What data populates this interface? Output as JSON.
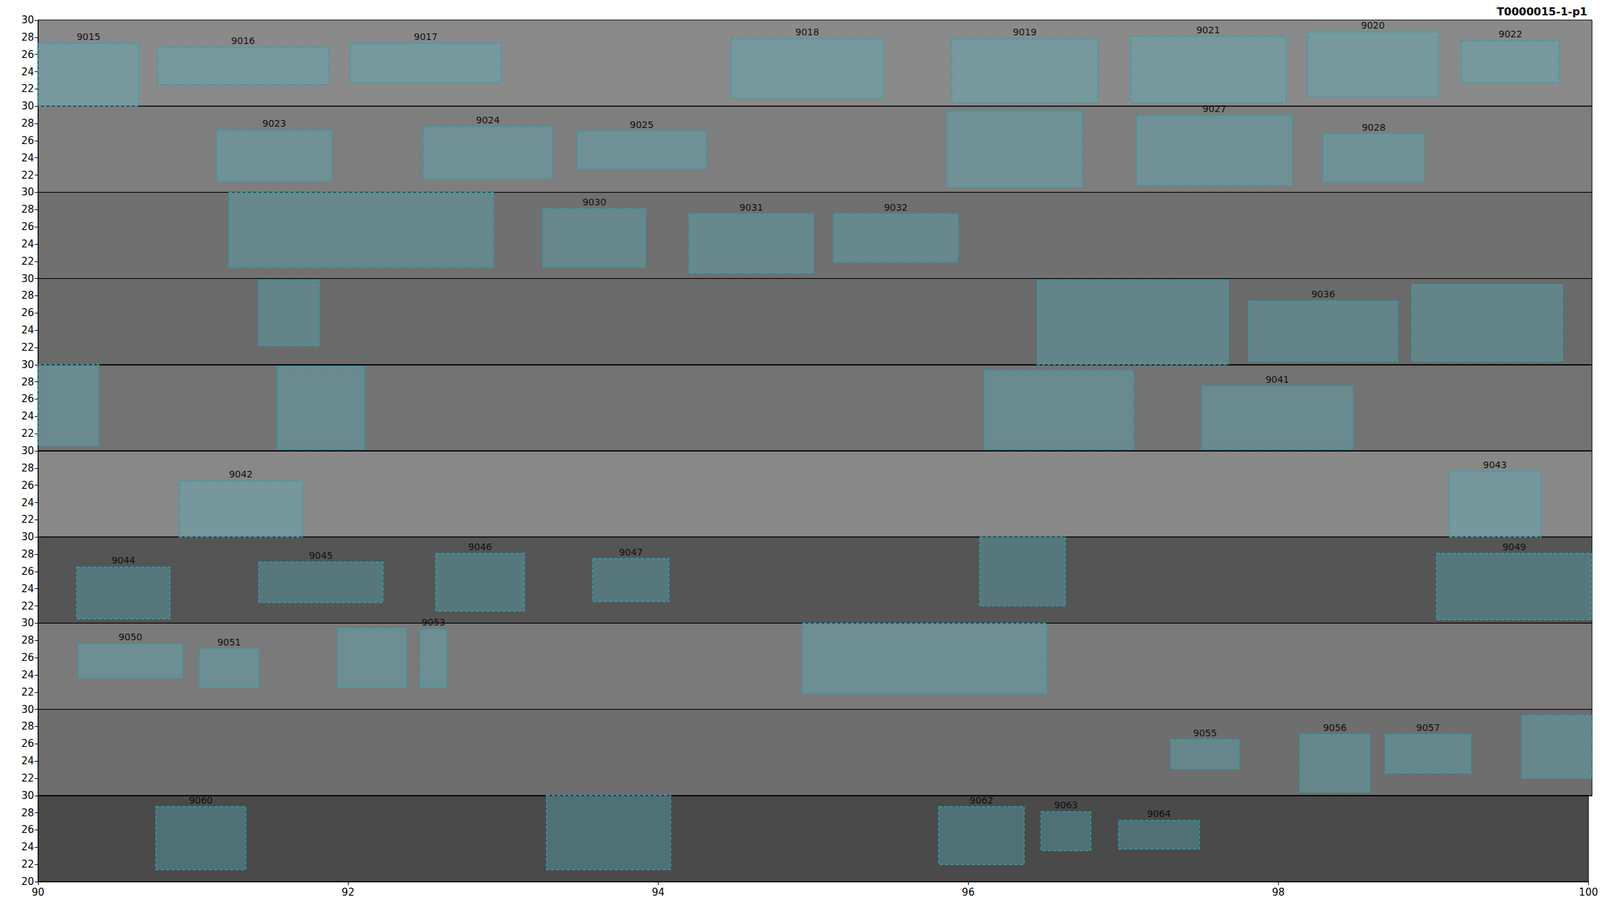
{
  "chart_data": {
    "type": "box",
    "title": "T0000015-1-p1",
    "xlim": [
      90,
      100
    ],
    "xticks": [
      90,
      92,
      94,
      96,
      98,
      100
    ],
    "ylim": [
      20,
      30
    ],
    "rows": [
      {
        "yticks": [
          22,
          24,
          26,
          28,
          30
        ],
        "boxes": [
          {
            "label": "9015",
            "x": [
              90.0,
              90.65
            ],
            "y": [
              20.0,
              27.3
            ]
          },
          {
            "label": "9016",
            "x": [
              90.77,
              91.87
            ],
            "y": [
              22.5,
              26.8
            ]
          },
          {
            "label": "9017",
            "x": [
              92.01,
              92.98
            ],
            "y": [
              22.7,
              27.3
            ]
          },
          {
            "label": "9018",
            "x": [
              94.46,
              95.44
            ],
            "y": [
              20.9,
              27.8
            ]
          },
          {
            "label": "9019",
            "x": [
              95.88,
              96.82
            ],
            "y": [
              20.4,
              27.8
            ]
          },
          {
            "label": "9021",
            "x": [
              97.03,
              98.03
            ],
            "y": [
              20.4,
              28.1
            ]
          },
          {
            "label": "9020",
            "x": [
              98.17,
              99.01
            ],
            "y": [
              21.1,
              28.6
            ]
          },
          {
            "label": "9022",
            "x": [
              99.16,
              99.79
            ],
            "y": [
              22.7,
              27.6
            ]
          }
        ]
      },
      {
        "yticks": [
          22,
          24,
          26,
          28,
          30
        ],
        "boxes": [
          {
            "label": "9023",
            "x": [
              91.15,
              91.89
            ],
            "y": [
              21.3,
              27.2
            ]
          },
          {
            "label": "9024",
            "x": [
              92.48,
              93.31
            ],
            "y": [
              21.6,
              27.6
            ]
          },
          {
            "label": "9025",
            "x": [
              93.47,
              94.3
            ],
            "y": [
              22.7,
              27.1
            ]
          },
          {
            "label": null,
            "x": [
              95.85,
              96.72
            ],
            "y": [
              20.6,
              29.4
            ]
          },
          {
            "label": "9027",
            "x": [
              97.07,
              98.07
            ],
            "y": [
              20.8,
              28.9
            ]
          },
          {
            "label": "9028",
            "x": [
              98.27,
              98.92
            ],
            "y": [
              21.2,
              26.8
            ]
          }
        ]
      },
      {
        "yticks": [
          22,
          24,
          26,
          28,
          30
        ],
        "boxes": [
          {
            "label": null,
            "x": [
              91.23,
              92.93
            ],
            "y": [
              21.3,
              30.0
            ]
          },
          {
            "label": "9030",
            "x": [
              93.25,
              93.91
            ],
            "y": [
              21.3,
              28.1
            ]
          },
          {
            "label": "9031",
            "x": [
              94.19,
              94.99
            ],
            "y": [
              20.6,
              27.5
            ]
          },
          {
            "label": "9032",
            "x": [
              95.12,
              95.92
            ],
            "y": [
              21.9,
              27.5
            ]
          }
        ]
      },
      {
        "yticks": [
          22,
          24,
          26,
          28,
          30
        ],
        "boxes": [
          {
            "label": null,
            "x": [
              91.42,
              91.81
            ],
            "y": [
              22.2,
              29.8
            ]
          },
          {
            "label": null,
            "x": [
              96.43,
              97.66
            ],
            "y": [
              20.0,
              29.8
            ]
          },
          {
            "label": "9036",
            "x": [
              97.79,
              98.75
            ],
            "y": [
              20.4,
              27.4
            ]
          },
          {
            "label": null,
            "x": [
              98.84,
              99.81
            ],
            "y": [
              20.4,
              29.3
            ]
          }
        ]
      },
      {
        "yticks": [
          22,
          24,
          26,
          28,
          30
        ],
        "boxes": [
          {
            "label": null,
            "x": [
              90.0,
              90.39
            ],
            "y": [
              20.6,
              30.0
            ]
          },
          {
            "label": null,
            "x": [
              91.54,
              92.1
            ],
            "y": [
              20.2,
              29.8
            ]
          },
          {
            "label": null,
            "x": [
              96.09,
              97.05
            ],
            "y": [
              20.2,
              29.3
            ]
          },
          {
            "label": "9041",
            "x": [
              97.49,
              98.46
            ],
            "y": [
              20.2,
              27.5
            ]
          }
        ]
      },
      {
        "yticks": [
          22,
          24,
          26,
          28,
          30
        ],
        "boxes": [
          {
            "label": "9042",
            "x": [
              90.91,
              91.7
            ],
            "y": [
              20.0,
              26.5
            ]
          },
          {
            "label": "9043",
            "x": [
              99.08,
              99.67
            ],
            "y": [
              20.0,
              27.6
            ]
          }
        ]
      },
      {
        "yticks": [
          22,
          24,
          26,
          28,
          30
        ],
        "boxes": [
          {
            "label": "9044",
            "x": [
              90.25,
              90.85
            ],
            "y": [
              20.5,
              26.5
            ]
          },
          {
            "label": "9045",
            "x": [
              91.42,
              92.22
            ],
            "y": [
              22.4,
              27.1
            ]
          },
          {
            "label": "9046",
            "x": [
              92.56,
              93.13
            ],
            "y": [
              21.4,
              28.1
            ]
          },
          {
            "label": "9047",
            "x": [
              93.57,
              94.06
            ],
            "y": [
              22.5,
              27.5
            ]
          },
          {
            "label": null,
            "x": [
              96.06,
              96.61
            ],
            "y": [
              22.0,
              30.0
            ]
          },
          {
            "label": "9049",
            "x": [
              99.0,
              100.0
            ],
            "y": [
              20.4,
              28.1
            ]
          }
        ]
      },
      {
        "yticks": [
          22,
          24,
          26,
          28,
          30
        ],
        "boxes": [
          {
            "label": "9050",
            "x": [
              90.26,
              90.93
            ],
            "y": [
              23.6,
              27.6
            ]
          },
          {
            "label": "9051",
            "x": [
              91.04,
              91.42
            ],
            "y": [
              22.5,
              27.0
            ]
          },
          {
            "label": null,
            "x": [
              91.93,
              92.37
            ],
            "y": [
              22.5,
              29.4
            ]
          },
          {
            "label": "9053",
            "x": [
              92.46,
              92.63
            ],
            "y": [
              22.5,
              29.3
            ]
          },
          {
            "label": null,
            "x": [
              94.92,
              96.49
            ],
            "y": [
              21.8,
              30.0
            ]
          }
        ]
      },
      {
        "yticks": [
          22,
          24,
          26,
          28,
          30
        ],
        "boxes": [
          {
            "label": "9055",
            "x": [
              97.29,
              97.73
            ],
            "y": [
              23.1,
              26.5
            ]
          },
          {
            "label": "9056",
            "x": [
              98.12,
              98.57
            ],
            "y": [
              20.4,
              27.1
            ]
          },
          {
            "label": "9057",
            "x": [
              98.67,
              99.22
            ],
            "y": [
              22.6,
              27.1
            ]
          },
          {
            "label": null,
            "x": [
              99.55,
              100.0
            ],
            "y": [
              22.0,
              29.3
            ]
          }
        ]
      },
      {
        "yticks": [
          20,
          22,
          24,
          26,
          28,
          30
        ],
        "boxes": [
          {
            "label": "9060",
            "x": [
              90.76,
              91.34
            ],
            "y": [
              21.4,
              28.7
            ]
          },
          {
            "label": null,
            "x": [
              93.28,
              94.08
            ],
            "y": [
              21.4,
              30.0
            ]
          },
          {
            "label": "9062",
            "x": [
              95.81,
              96.36
            ],
            "y": [
              22.0,
              28.7
            ]
          },
          {
            "label": "9063",
            "x": [
              96.47,
              96.79
            ],
            "y": [
              23.6,
              28.1
            ]
          },
          {
            "label": "9064",
            "x": [
              96.97,
              97.49
            ],
            "y": [
              23.8,
              27.1
            ]
          }
        ]
      }
    ]
  }
}
